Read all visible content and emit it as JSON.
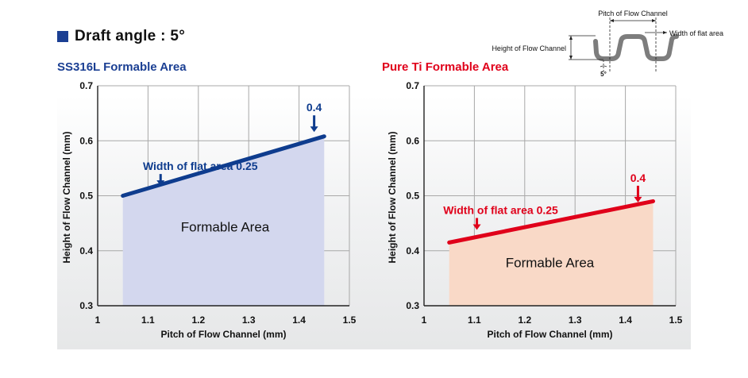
{
  "page_title": "Draft angle : 5°",
  "colors": {
    "title_square": "#1b3f93",
    "ss_title": "#1b3f93",
    "ss_line": "#0e3c8e",
    "ss_fill": "#d3d7ee",
    "ti_title": "#e0001a",
    "ti_line": "#e0001a",
    "ti_fill": "#f9d9c7",
    "grid": "#a8a8a8",
    "axis": "#222222"
  },
  "diagram": {
    "pitch_label": "Pitch of Flow Channel",
    "width_label": "Width of flat area",
    "height_label": "Height of Flow Channel",
    "angle_label": "5°"
  },
  "chart_data": [
    {
      "type": "area",
      "title": "SS316L Formable Area",
      "xlabel": "Pitch of Flow Channel (mm)",
      "ylabel": "Height of Flow Channel (mm)",
      "xlim": [
        1,
        1.5
      ],
      "ylim": [
        0.3,
        0.7
      ],
      "xticks": [
        "1",
        "1.1",
        "1.2",
        "1.3",
        "1.4",
        "1.5"
      ],
      "yticks": [
        "0.3",
        "0.4",
        "0.5",
        "0.6",
        "0.7"
      ],
      "grid": true,
      "series": [
        {
          "x": [
            1.05,
            1.45
          ],
          "y": [
            0.5,
            0.608
          ]
        }
      ],
      "area_label": "Formable Area",
      "annotations": [
        {
          "text": "Width of flat area 0.25",
          "x": 1.125,
          "y": 0.515
        },
        {
          "text": "0.4",
          "x": 1.43,
          "y": 0.613
        }
      ]
    },
    {
      "type": "area",
      "title": "Pure Ti Formable Area",
      "xlabel": "Pitch of Flow Channel (mm)",
      "ylabel": "Height of Flow Channel (mm)",
      "xlim": [
        1,
        1.5
      ],
      "ylim": [
        0.3,
        0.7
      ],
      "xticks": [
        "1",
        "1.1",
        "1.2",
        "1.3",
        "1.4",
        "1.5"
      ],
      "yticks": [
        "0.3",
        "0.4",
        "0.5",
        "0.6",
        "0.7"
      ],
      "grid": true,
      "series": [
        {
          "x": [
            1.05,
            1.455
          ],
          "y": [
            0.415,
            0.49
          ]
        }
      ],
      "area_label": "Formable Area",
      "annotations": [
        {
          "text": "Width of flat area 0.25",
          "x": 1.105,
          "y": 0.435
        },
        {
          "text": "0.4",
          "x": 1.425,
          "y": 0.485
        }
      ]
    }
  ]
}
